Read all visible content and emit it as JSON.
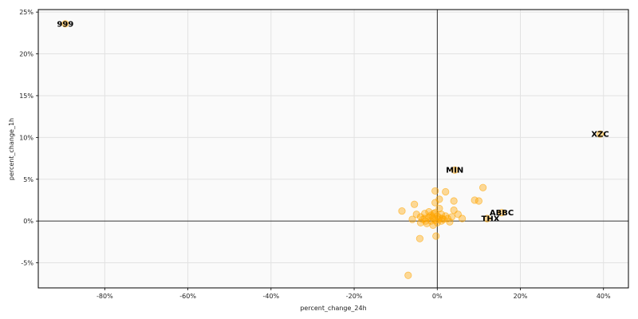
{
  "chart_data": {
    "type": "scatter",
    "title": "",
    "xlabel": "percent_change_24h",
    "ylabel": "percent_change_1h",
    "xlim": [
      -96,
      46
    ],
    "ylim": [
      -8,
      25.3
    ],
    "x_ticks": [
      -80,
      -60,
      -40,
      -20,
      0,
      20,
      40
    ],
    "x_tick_labels": [
      "-80%",
      "-60%",
      "-40%",
      "-20%",
      "0%",
      "20%",
      "40%"
    ],
    "y_ticks": [
      -5,
      0,
      5,
      10,
      15,
      20,
      25
    ],
    "y_tick_labels": [
      "-5%",
      "0%",
      "5%",
      "10%",
      "15%",
      "20%",
      "25%"
    ],
    "grid": true,
    "reference_lines": {
      "x": 0,
      "y": 0
    },
    "marker_color": "#ffa500",
    "plot_background": "#fafafa",
    "grid_color": "#e2e2e2",
    "series": [
      {
        "points": [
          {
            "x": -89.5,
            "y": 23.6
          },
          {
            "x": 39.2,
            "y": 10.4
          },
          {
            "x": 4.2,
            "y": 6.1
          },
          {
            "x": 15.5,
            "y": 1.0
          },
          {
            "x": 12.0,
            "y": 0.3
          },
          {
            "x": -0.5,
            "y": 3.6
          },
          {
            "x": 2.0,
            "y": 3.5
          },
          {
            "x": 11.0,
            "y": 4.0
          },
          {
            "x": 9.0,
            "y": 2.5
          },
          {
            "x": 10.0,
            "y": 2.4
          },
          {
            "x": 4.0,
            "y": 2.4
          },
          {
            "x": 0.5,
            "y": 2.6
          },
          {
            "x": -0.5,
            "y": 2.2
          },
          {
            "x": -5.5,
            "y": 2.0
          },
          {
            "x": -8.5,
            "y": 1.2
          },
          {
            "x": -5.0,
            "y": 0.8
          },
          {
            "x": -6.0,
            "y": 0.2
          },
          {
            "x": -4.0,
            "y": 0.5
          },
          {
            "x": -4.0,
            "y": -0.2
          },
          {
            "x": -3.0,
            "y": 0.3
          },
          {
            "x": -3.0,
            "y": 0.9
          },
          {
            "x": -2.5,
            "y": -0.3
          },
          {
            "x": -2.0,
            "y": 0.5
          },
          {
            "x": -2.0,
            "y": 1.1
          },
          {
            "x": -1.5,
            "y": 0.0
          },
          {
            "x": -1.5,
            "y": 0.7
          },
          {
            "x": -1.0,
            "y": 0.3
          },
          {
            "x": -1.0,
            "y": -0.5
          },
          {
            "x": -0.5,
            "y": 1.0
          },
          {
            "x": -0.5,
            "y": 0.1
          },
          {
            "x": 0.0,
            "y": 0.6
          },
          {
            "x": 0.0,
            "y": -0.2
          },
          {
            "x": 0.5,
            "y": 0.4
          },
          {
            "x": 0.5,
            "y": 1.5
          },
          {
            "x": 1.0,
            "y": 0.0
          },
          {
            "x": 1.0,
            "y": 0.8
          },
          {
            "x": 1.5,
            "y": 0.2
          },
          {
            "x": 2.0,
            "y": 0.6
          },
          {
            "x": 2.5,
            "y": 0.3
          },
          {
            "x": 3.0,
            "y": -0.1
          },
          {
            "x": 3.5,
            "y": 0.5
          },
          {
            "x": 4.0,
            "y": 1.3
          },
          {
            "x": 5.0,
            "y": 0.8
          },
          {
            "x": 6.0,
            "y": 0.3
          },
          {
            "x": -3.5,
            "y": 0.2
          },
          {
            "x": -2.8,
            "y": 0.0
          },
          {
            "x": -1.2,
            "y": 0.5
          },
          {
            "x": -0.8,
            "y": 0.9
          },
          {
            "x": 0.2,
            "y": 0.2
          },
          {
            "x": 1.2,
            "y": 0.3
          },
          {
            "x": -4.2,
            "y": -2.1
          },
          {
            "x": -0.3,
            "y": -1.8
          },
          {
            "x": -7.0,
            "y": -6.5
          }
        ]
      }
    ],
    "annotations": [
      {
        "text": "999",
        "x": -89.5,
        "y": 23.6
      },
      {
        "text": "XZC",
        "x": 39.2,
        "y": 10.4
      },
      {
        "text": "MIN",
        "x": 4.2,
        "y": 6.1
      },
      {
        "text": "ABBC",
        "x": 15.5,
        "y": 1.0
      },
      {
        "text": "THX",
        "x": 12.8,
        "y": 0.3
      }
    ]
  }
}
